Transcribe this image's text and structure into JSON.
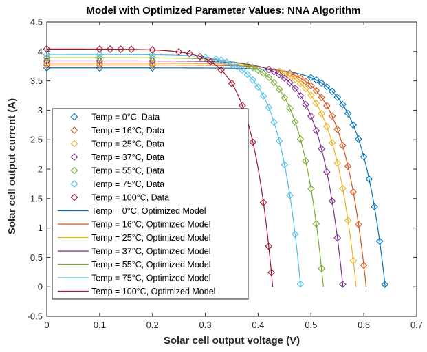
{
  "chart_data": {
    "type": "line",
    "title": "Model with Optimized Parameter Values: NNA Algorithm",
    "xlabel": "Solar cell output voltage (V)",
    "ylabel": "Solar cell output current (A)",
    "xlim": [
      0,
      0.7
    ],
    "ylim": [
      -0.5,
      4.5
    ],
    "xticks": [
      0,
      0.1,
      0.2,
      0.3,
      0.4,
      0.5,
      0.6,
      0.7
    ],
    "xtick_labels": [
      "0",
      "0.1",
      "0.2",
      "0.3",
      "0.4",
      "0.5",
      "0.6",
      "0.7"
    ],
    "yticks": [
      -0.5,
      0,
      0.5,
      1,
      1.5,
      2,
      2.5,
      3,
      3.5,
      4,
      4.5
    ],
    "ytick_labels": [
      "-0.5",
      "0",
      "0.5",
      "1",
      "1.5",
      "2",
      "2.5",
      "3",
      "3.5",
      "4",
      "4.5"
    ],
    "grid": false,
    "legend_position": "lower-left",
    "series": [
      {
        "temp": 0,
        "color": "#0072BD",
        "data_label": "Temp = 0°C, Data",
        "model_label": "Temp = 0°C, Optimized Model",
        "isc": 3.72,
        "voc": 0.6405,
        "knee": 0.045,
        "data_x": [
          0,
          0.1,
          0.2,
          0.5,
          0.51,
          0.52,
          0.53,
          0.54,
          0.55,
          0.56,
          0.57,
          0.58,
          0.59,
          0.6,
          0.61,
          0.62,
          0.63,
          0.64
        ]
      },
      {
        "temp": 16,
        "color": "#D95319",
        "data_label": "Temp = 16°C, Data",
        "model_label": "Temp = 16°C, Optimized Model",
        "isc": 3.77,
        "voc": 0.6045,
        "knee": 0.044,
        "data_x": [
          0,
          0.1,
          0.2,
          0.46,
          0.47,
          0.48,
          0.49,
          0.5,
          0.51,
          0.52,
          0.53,
          0.54,
          0.55,
          0.56,
          0.57,
          0.58,
          0.59,
          0.6
        ]
      },
      {
        "temp": 25,
        "color": "#EDB120",
        "data_label": "Temp = 25°C, Data",
        "model_label": "Temp = 25°C, Optimized Model",
        "isc": 3.8,
        "voc": 0.5855,
        "knee": 0.044,
        "data_x": [
          0,
          0.1,
          0.2,
          0.44,
          0.45,
          0.46,
          0.47,
          0.48,
          0.49,
          0.5,
          0.51,
          0.52,
          0.53,
          0.54,
          0.55,
          0.56,
          0.57,
          0.58
        ]
      },
      {
        "temp": 37,
        "color": "#7E2F8E",
        "data_label": "Temp = 37°C, Data",
        "model_label": "Temp = 37°C, Optimized Model",
        "isc": 3.84,
        "voc": 0.5605,
        "knee": 0.043,
        "data_x": [
          0,
          0.1,
          0.2,
          0.42,
          0.43,
          0.44,
          0.45,
          0.46,
          0.47,
          0.48,
          0.49,
          0.5,
          0.51,
          0.52,
          0.53,
          0.54,
          0.55,
          0.56
        ]
      },
      {
        "temp": 55,
        "color": "#77AC30",
        "data_label": "Temp = 55°C, Data",
        "model_label": "Temp = 55°C, Optimized Model",
        "isc": 3.89,
        "voc": 0.5235,
        "knee": 0.042,
        "data_x": [
          0,
          0.1,
          0.2,
          0.38,
          0.39,
          0.4,
          0.41,
          0.42,
          0.43,
          0.44,
          0.45,
          0.46,
          0.47,
          0.48,
          0.49,
          0.5,
          0.51,
          0.52
        ]
      },
      {
        "temp": 75,
        "color": "#4DBEEE",
        "data_label": "Temp = 75°C, Data",
        "model_label": "Temp = 75°C, Optimized Model",
        "isc": 3.95,
        "voc": 0.4805,
        "knee": 0.041,
        "data_x": [
          0,
          0.1,
          0.2,
          0.3,
          0.32,
          0.33,
          0.34,
          0.35,
          0.36,
          0.37,
          0.38,
          0.39,
          0.4,
          0.41,
          0.42,
          0.43,
          0.44,
          0.45,
          0.46,
          0.47,
          0.48
        ]
      },
      {
        "temp": 100,
        "color": "#A2142F",
        "data_label": "Temp = 100°C, Data",
        "model_label": "Temp = 100°C, Optimized Model",
        "isc": 4.04,
        "voc": 0.4275,
        "knee": 0.04,
        "data_x": [
          0,
          0.1,
          0.12,
          0.14,
          0.16,
          0.2,
          0.25,
          0.27,
          0.29,
          0.31,
          0.33,
          0.35,
          0.37,
          0.39,
          0.41,
          0.42,
          0.425
        ]
      }
    ]
  }
}
